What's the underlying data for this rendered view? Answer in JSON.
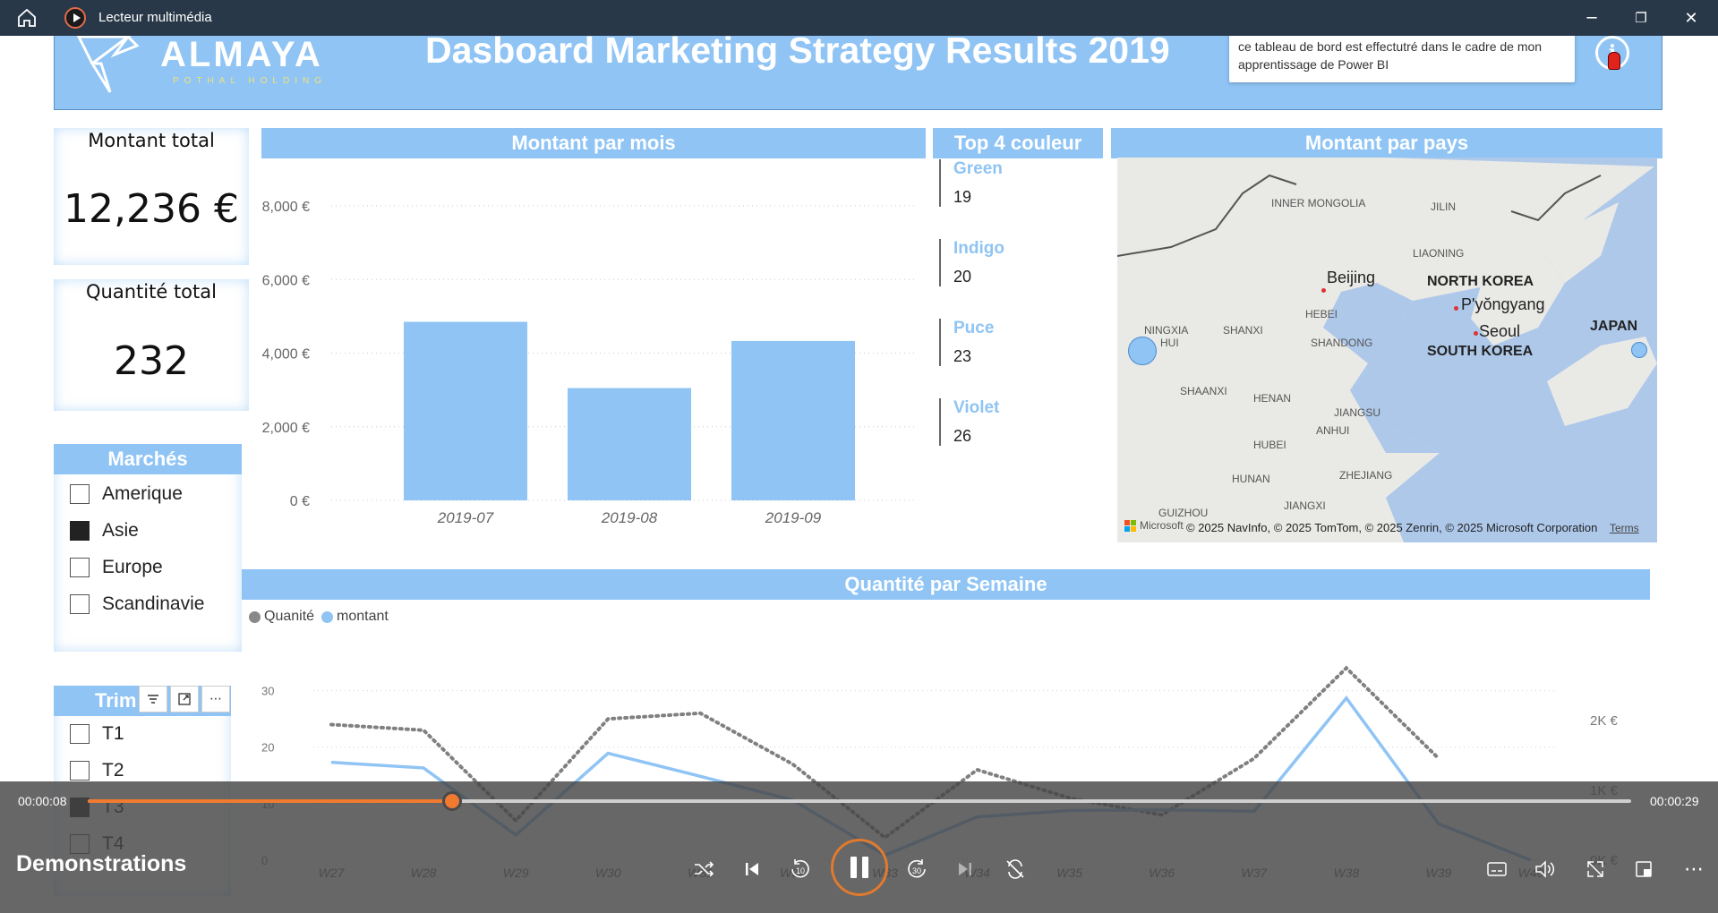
{
  "window": {
    "title": "Lecteur multimédia",
    "minimize": "─",
    "restore": "❐",
    "close": "✕"
  },
  "banner": {
    "logo_name": "ALMAYA",
    "logo_tagline": "POTHAL HOLDING",
    "title": "Dasboard Marketing Strategy Results 2019",
    "tooltip": "ce tableau de bord est effectutré dans le cadre de mon apprentissage de Power BI",
    "info_icon": "info-icon"
  },
  "kpis": {
    "montant_label": "Montant total",
    "montant_value": "12,236 €",
    "quantite_label": "Quantité total",
    "quantite_value": "232"
  },
  "slicers": {
    "marches": {
      "title": "Marchés",
      "items": [
        {
          "label": "Amerique",
          "checked": false
        },
        {
          "label": "Asie",
          "checked": true
        },
        {
          "label": "Europe",
          "checked": false
        },
        {
          "label": "Scandinavie",
          "checked": false
        }
      ]
    },
    "trimestre": {
      "title": "Trim",
      "items": [
        {
          "label": "T1",
          "checked": false
        },
        {
          "label": "T2",
          "checked": false
        },
        {
          "label": "T3",
          "checked": true
        },
        {
          "label": "T4",
          "checked": false
        }
      ]
    }
  },
  "top_colors": {
    "title": "Top 4 couleur",
    "items": [
      {
        "name": "Green",
        "value": "19"
      },
      {
        "name": "Indigo",
        "value": "20"
      },
      {
        "name": "Puce",
        "value": "23"
      },
      {
        "name": "Violet",
        "value": "26"
      }
    ]
  },
  "map": {
    "title": "Montant par pays",
    "labels": [
      "INNER MONGOLIA",
      "JILIN",
      "LIAONING",
      "Beijing",
      "NORTH KOREA",
      "P'yŏngyang",
      "Seoul",
      "SOUTH KOREA",
      "JAPAN",
      "NINGXIA",
      "HUI",
      "SHANXI",
      "HEBEI",
      "SHANDONG",
      "SHAANXI",
      "HENAN",
      "JIANGSU",
      "ANHUI",
      "HUBEI",
      "HUNAN",
      "ZHEJIANG",
      "JIANGXI",
      "GUIZHOU"
    ],
    "credit": "© 2025 NavInfo, © 2025 TomTom, © 2025 Zenrin, © 2025 Microsoft Corporation",
    "terms": "Terms",
    "ms_logo": "Microsoft"
  },
  "chart_data": [
    {
      "type": "bar",
      "title": "Montant par mois",
      "categories": [
        "2019-07",
        "2019-08",
        "2019-09"
      ],
      "values": [
        4850,
        3050,
        4330
      ],
      "ylim": [
        0,
        8000
      ],
      "yticks": [
        "0 €",
        "2,000 €",
        "4,000 €",
        "6,000 €",
        "8,000 €"
      ],
      "color": "#8fc4f4"
    },
    {
      "type": "line",
      "title": "Quantité par Semaine",
      "categories": [
        "W27",
        "W28",
        "W29",
        "W30",
        "W31",
        "W32",
        "W33",
        "W34",
        "W35",
        "W36",
        "W37",
        "W38",
        "W39",
        "W40"
      ],
      "series": [
        {
          "name": "Quanité",
          "axis": "left",
          "style": "dotted",
          "color": "#808080",
          "values": [
            24,
            23,
            7,
            25,
            26,
            17,
            4,
            16,
            11,
            8,
            18,
            34,
            18,
            null
          ]
        },
        {
          "name": "montant",
          "axis": "right",
          "style": "solid",
          "color": "#8fc4f4",
          "values": [
            1400,
            1320,
            360,
            1530,
            1200,
            860,
            70,
            620,
            710,
            720,
            700,
            2320,
            520,
            0
          ]
        }
      ],
      "ylim_left": [
        0,
        35
      ],
      "yticks_left": [
        "0",
        "10",
        "20",
        "30"
      ],
      "yticks_right": [
        "0K €",
        "1K €",
        "2K €"
      ]
    }
  ],
  "player": {
    "current_time": "00:00:08",
    "total_time": "00:00:29",
    "progress": 0.236,
    "media_title": "Demonstrations",
    "accent": "#f07a30"
  }
}
